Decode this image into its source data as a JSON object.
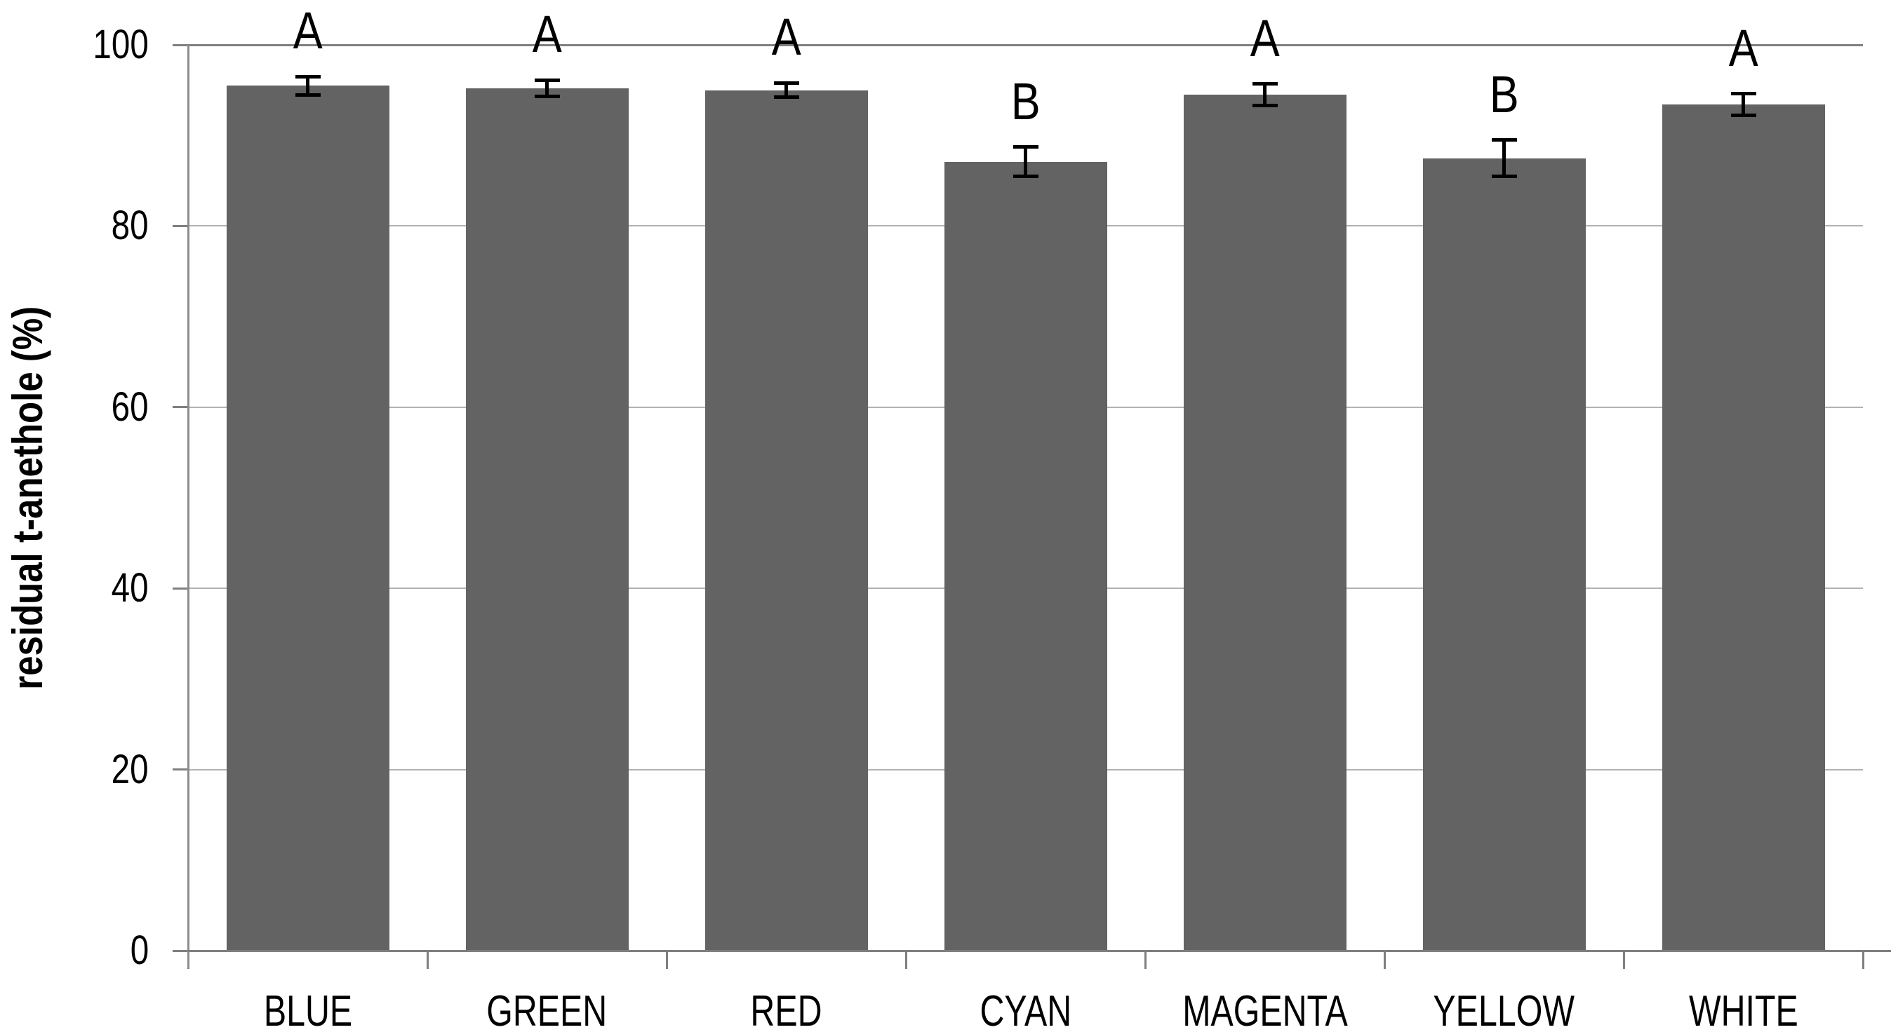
{
  "chart_data": {
    "type": "bar",
    "title": "",
    "xlabel": "",
    "ylabel": "residual t-anethole (%)",
    "ylim": [
      0,
      100
    ],
    "yticks": [
      0,
      20,
      40,
      60,
      80,
      100
    ],
    "grid": "horizontal",
    "legend_position": "none",
    "categories": [
      "BLUE",
      "GREEN",
      "RED",
      "CYAN",
      "MAGENTA",
      "YELLOW",
      "WHITE"
    ],
    "series": [
      {
        "name": "residual t-anethole (%)",
        "values": [
          95.5,
          95.2,
          95.0,
          87.1,
          94.5,
          87.5,
          93.4
        ],
        "error_plus_minus": [
          1.0,
          0.9,
          0.8,
          1.6,
          1.2,
          2.0,
          1.2
        ],
        "significance_letters": [
          "A",
          "A",
          "A",
          "B",
          "A",
          "B",
          "A"
        ]
      }
    ],
    "colors": {
      "bar_fill": "#636363",
      "gridline_minor": "#b2b2b2",
      "gridline_major": "#7f7f7f",
      "axis_line": "#8c8c8c",
      "error_bar": "#000000",
      "text": "#000000",
      "background": "#ffffff"
    }
  }
}
